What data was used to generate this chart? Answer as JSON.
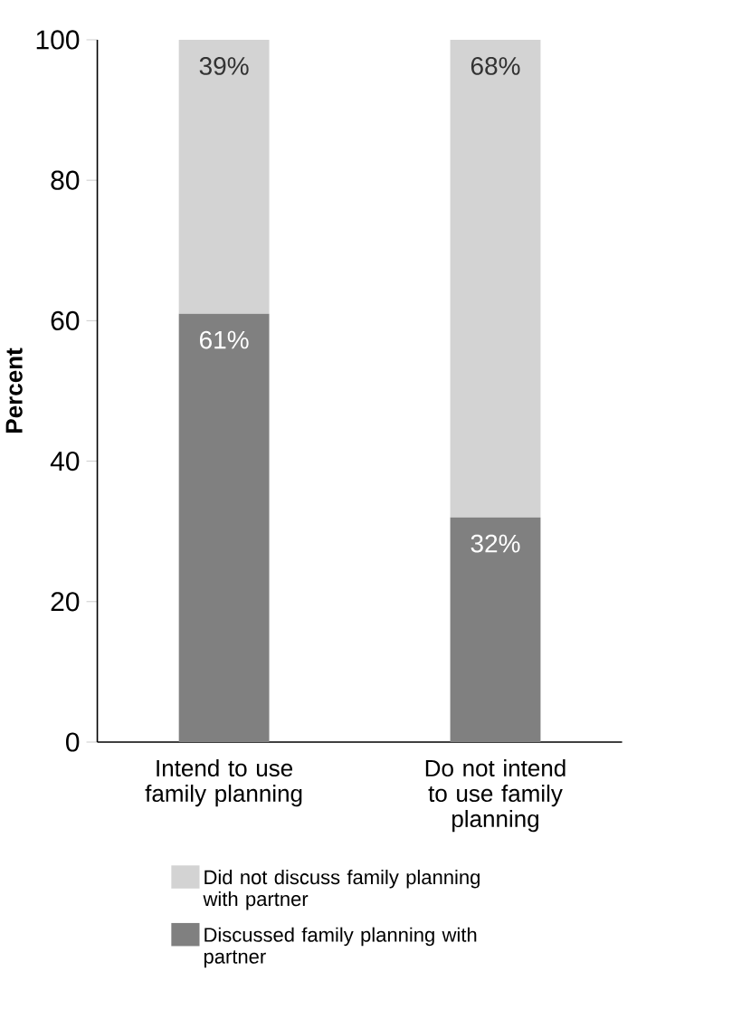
{
  "chart_data": {
    "type": "bar",
    "stacked": true,
    "ylabel": "Percent",
    "categories": [
      "Intend to use family planning",
      "Do not intend to use family planning"
    ],
    "series": [
      {
        "name": "Discussed family planning with partner",
        "color": "#808080",
        "values": [
          61,
          32
        ],
        "value_labels": [
          "61%",
          "32%"
        ]
      },
      {
        "name": "Did not discuss family planning with partner",
        "color": "#d3d3d3",
        "values": [
          39,
          68
        ],
        "value_labels": [
          "39%",
          "68%"
        ]
      }
    ],
    "ylim": [
      0,
      100
    ],
    "yticks": [
      0,
      20,
      40,
      60,
      80,
      100
    ],
    "grid": false,
    "legend": "bottom"
  }
}
